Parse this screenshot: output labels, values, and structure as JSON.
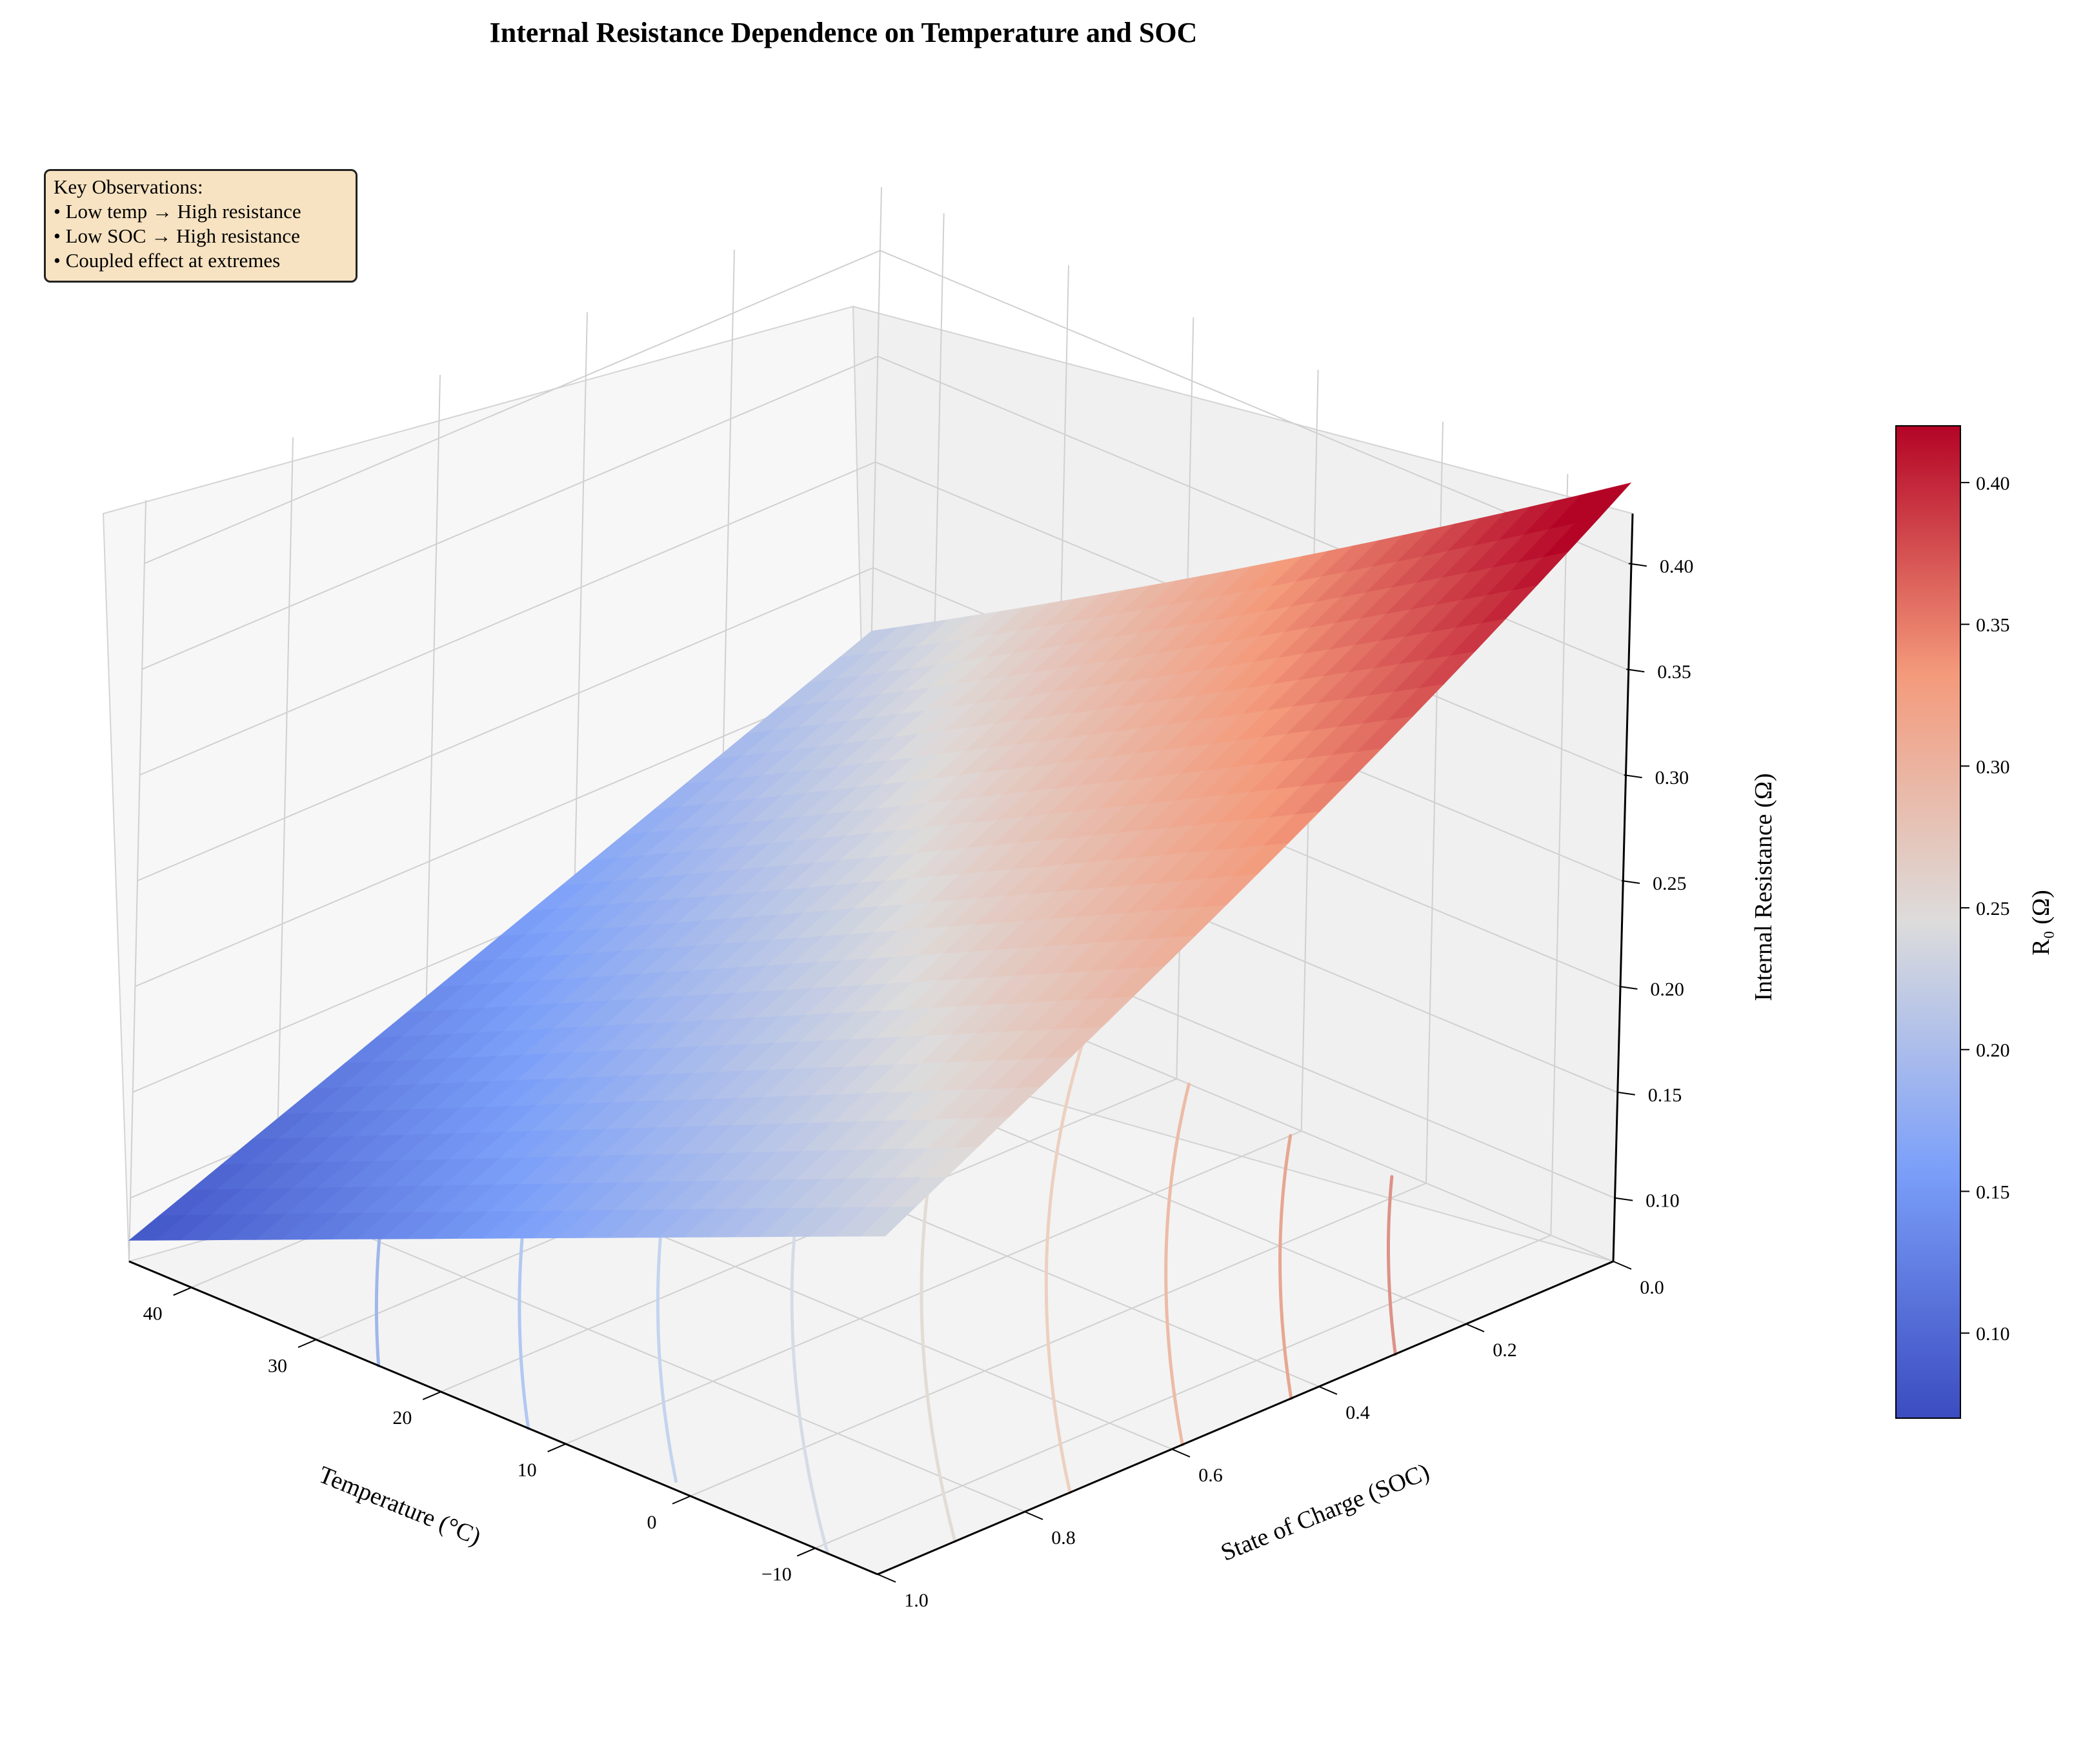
{
  "chart_data": {
    "type": "surface",
    "title": "Internal Resistance Dependence on Temperature and SOC",
    "x_axis": {
      "label": "Temperature (°C)",
      "range": [
        -15,
        45
      ],
      "ticks": [
        40,
        30,
        20,
        10,
        0,
        -10
      ],
      "tick_labels": [
        "40",
        "30",
        "20",
        "10",
        "0",
        "−10"
      ]
    },
    "y_axis": {
      "label": "State of Charge (SOC)",
      "range": [
        0.0,
        1.0
      ],
      "ticks": [
        0.0,
        0.2,
        0.4,
        0.6,
        0.8,
        1.0
      ],
      "tick_labels": [
        "0.0",
        "0.2",
        "0.4",
        "0.6",
        "0.8",
        "1.0"
      ]
    },
    "z_axis": {
      "label": "Internal Resistance (Ω)",
      "range": [
        0.07,
        0.43
      ],
      "ticks": [
        0.1,
        0.15,
        0.2,
        0.25,
        0.3,
        0.35,
        0.4
      ],
      "tick_labels": [
        "0.10",
        "0.15",
        "0.20",
        "0.25",
        "0.30",
        "0.35",
        "0.40"
      ]
    },
    "surface_corners": [
      {
        "temperature": -15,
        "soc": 0.0,
        "resistance": 0.42
      },
      {
        "temperature": -15,
        "soc": 1.0,
        "resistance": 0.23
      },
      {
        "temperature": 45,
        "soc": 0.0,
        "resistance": 0.22
      },
      {
        "temperature": 45,
        "soc": 1.0,
        "resistance": 0.08
      }
    ],
    "floor_contours": [
      {
        "level": 0.13,
        "color": "#9fb7ea"
      },
      {
        "level": 0.16,
        "color": "#b1c8f1"
      },
      {
        "level": 0.19,
        "color": "#c4d4ef"
      },
      {
        "level": 0.22,
        "color": "#d6dce6"
      },
      {
        "level": 0.25,
        "color": "#e2dcd5"
      },
      {
        "level": 0.28,
        "color": "#edd0c0"
      },
      {
        "level": 0.31,
        "color": "#edbba6"
      },
      {
        "level": 0.34,
        "color": "#e7a691"
      },
      {
        "level": 0.37,
        "color": "#dd9288"
      }
    ],
    "colormap": "coolwarm",
    "colorbar": {
      "label": "R₀ (Ω)",
      "range": [
        0.07,
        0.42
      ],
      "ticks": [
        0.1,
        0.15,
        0.2,
        0.25,
        0.3,
        0.35,
        0.4
      ],
      "tick_labels": [
        "0.10",
        "0.15",
        "0.20",
        "0.25",
        "0.30",
        "0.35",
        "0.40"
      ]
    },
    "grid": true
  },
  "annotation": {
    "lines": [
      "Key Observations:",
      "• Low temp → High resistance",
      "• Low SOC → High resistance",
      "• Coupled effect at extremes"
    ]
  }
}
